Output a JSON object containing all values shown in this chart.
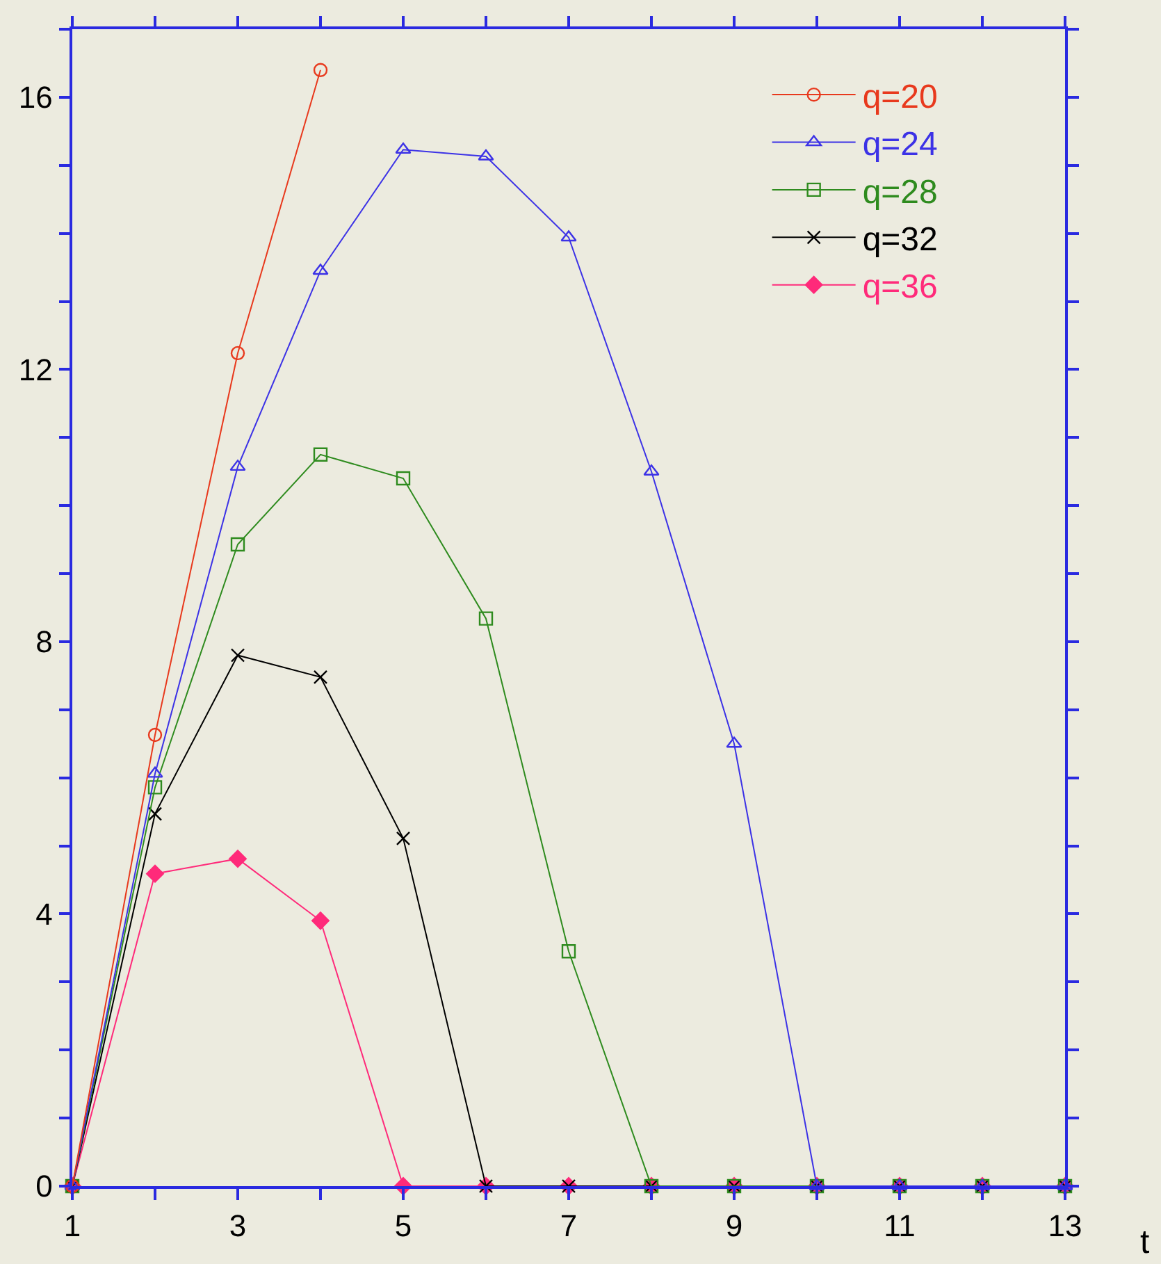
{
  "chart_data": {
    "type": "line",
    "xlabel": "t",
    "x": [
      1,
      2,
      3,
      4,
      5,
      6,
      7,
      8,
      9,
      10,
      11,
      12,
      13
    ],
    "series": [
      {
        "name": "q=20",
        "color": "#e8391d",
        "marker": "circle",
        "values": [
          0,
          6.63,
          12.24,
          16.4,
          null,
          null,
          null,
          null,
          null,
          null,
          null,
          null,
          null
        ]
      },
      {
        "name": "q=24",
        "color": "#3c32e6",
        "marker": "triangle",
        "values": [
          0,
          6.06,
          10.57,
          13.45,
          15.23,
          15.13,
          13.94,
          10.5,
          6.5,
          0,
          0,
          0,
          0
        ]
      },
      {
        "name": "q=28",
        "color": "#2e8b1e",
        "marker": "square",
        "values": [
          0,
          5.86,
          9.43,
          10.75,
          10.4,
          8.34,
          3.45,
          0,
          0,
          0,
          0,
          0,
          0
        ]
      },
      {
        "name": "q=32",
        "color": "#000000",
        "marker": "cross",
        "values": [
          0,
          5.47,
          7.8,
          7.48,
          5.11,
          0,
          0,
          0,
          0,
          0,
          0,
          0,
          0
        ]
      },
      {
        "name": "q=36",
        "color": "#ff2a7a",
        "marker": "diamond",
        "values": [
          0,
          4.59,
          4.81,
          3.9,
          0,
          0,
          0,
          0,
          0,
          0,
          0,
          0,
          0
        ]
      }
    ],
    "xlim": [
      1,
      13
    ],
    "xticks": [
      1,
      {
        "value": 2,
        "label": null
      },
      3,
      {
        "value": 4,
        "label": null
      },
      5,
      {
        "value": 6,
        "label": null
      },
      7,
      {
        "value": 8,
        "label": null
      },
      9,
      {
        "value": 10,
        "label": null
      },
      11,
      {
        "value": 12,
        "label": null
      },
      13
    ],
    "ylim": [
      0,
      17
    ],
    "yticks": [
      0,
      {
        "value": 1,
        "label": null
      },
      {
        "value": 2,
        "label": null
      },
      {
        "value": 3,
        "label": null
      },
      4,
      {
        "value": 5,
        "label": null
      },
      {
        "value": 6,
        "label": null
      },
      {
        "value": 7,
        "label": null
      },
      8,
      {
        "value": 9,
        "label": null
      },
      {
        "value": 10,
        "label": null
      },
      {
        "value": 11,
        "label": null
      },
      12,
      {
        "value": 13,
        "label": null
      },
      {
        "value": 14,
        "label": null
      },
      {
        "value": 15,
        "label": null
      },
      16,
      {
        "value": 17,
        "label": null
      }
    ],
    "grid": false,
    "legend": "top right"
  }
}
